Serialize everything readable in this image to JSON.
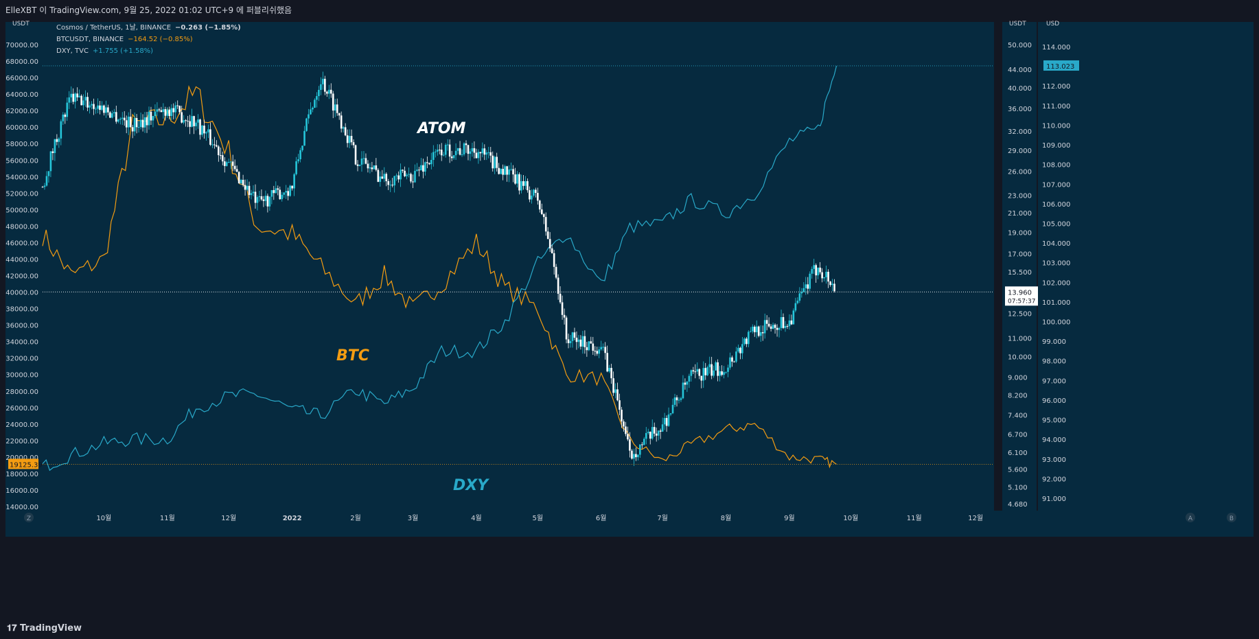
{
  "header": {
    "caption": "ElleXBT 이 TradingView.com, 9월 25, 2022 01:02 UTC+9 에 퍼블리쉬했음"
  },
  "footer": {
    "brand": "TradingView"
  },
  "colors": {
    "background": "#062a3f",
    "atom_up": "#26c6da",
    "atom_down": "#ffffff",
    "btc": "#f39c12",
    "dxy": "#29a9c9",
    "text": "#d1d4dc"
  },
  "legend": [
    {
      "name": "Cosmos / TetherUS, 1날, BINANCE",
      "value": "−0.263 (−1.85%)"
    },
    {
      "name": "BTCUSDT, BINANCE",
      "value": "−164.52 (−0.85%)"
    },
    {
      "name": "DXY, TVC",
      "value": "+1.755 (+1.58%)"
    }
  ],
  "annotations": {
    "atom": "ATOM",
    "btc": "BTC",
    "dxy": "DXY"
  },
  "chart_data": {
    "type": "line",
    "x": [
      "2021-09-01",
      "2021-09-15",
      "2021-10-01",
      "2021-10-15",
      "2021-11-01",
      "2021-11-15",
      "2021-12-01",
      "2021-12-15",
      "2022-01-01",
      "2022-01-15",
      "2022-02-01",
      "2022-02-15",
      "2022-03-01",
      "2022-03-15",
      "2022-04-01",
      "2022-04-15",
      "2022-05-01",
      "2022-05-15",
      "2022-06-01",
      "2022-06-15",
      "2022-07-01",
      "2022-07-15",
      "2022-08-01",
      "2022-08-15",
      "2022-09-01",
      "2022-09-15",
      "2022-09-24"
    ],
    "series": [
      {
        "name": "BTCUSDT, BINANCE",
        "axis": "left",
        "values": [
          47000,
          42000,
          44000,
          60000,
          61000,
          64000,
          57000,
          48000,
          47000,
          43000,
          38500,
          42000,
          38000,
          41000,
          46000,
          40500,
          38000,
          30000,
          29500,
          22000,
          19500,
          21500,
          23300,
          24000,
          20000,
          19700,
          19125
        ]
      },
      {
        "name": "DXY, TVC",
        "axis": "right2",
        "values": [
          92.6,
          93.2,
          93.8,
          94.0,
          94.0,
          95.6,
          96.2,
          96.3,
          95.5,
          95.2,
          96.5,
          95.8,
          96.6,
          98.5,
          98.5,
          100.0,
          103.0,
          104.5,
          101.9,
          104.8,
          105.0,
          106.2,
          105.5,
          106.5,
          109.2,
          109.8,
          113.023
        ]
      },
      {
        "name": "Cosmos / TetherUS, 1날, BINANCE",
        "axis": "right1",
        "values": [
          24.0,
          38.0,
          36.0,
          33.0,
          36.0,
          33.5,
          27.0,
          22.0,
          24.0,
          42.0,
          28.0,
          25.0,
          25.5,
          29.0,
          29.0,
          26.0,
          22.5,
          11.0,
          10.5,
          6.0,
          7.0,
          9.0,
          9.5,
          11.5,
          12.0,
          16.0,
          13.96
        ]
      }
    ],
    "ticks": {
      "x": [
        {
          "label": "10월",
          "date": "2021-10-01"
        },
        {
          "label": "11월",
          "date": "2021-11-01"
        },
        {
          "label": "12월",
          "date": "2021-12-01"
        },
        {
          "label": "2022",
          "date": "2022-01-01"
        },
        {
          "label": "2월",
          "date": "2022-02-01"
        },
        {
          "label": "3월",
          "date": "2022-03-01"
        },
        {
          "label": "4월",
          "date": "2022-04-01"
        },
        {
          "label": "5월",
          "date": "2022-05-01"
        },
        {
          "label": "6월",
          "date": "2022-06-01"
        },
        {
          "label": "7월",
          "date": "2022-07-01"
        },
        {
          "label": "8월",
          "date": "2022-08-01"
        },
        {
          "label": "9월",
          "date": "2022-09-01"
        },
        {
          "label": "10월",
          "date": "2022-10-01"
        },
        {
          "label": "11월",
          "date": "2022-11-01"
        },
        {
          "label": "12월",
          "date": "2022-12-01"
        }
      ],
      "left": [
        14000,
        16000,
        18000,
        20000,
        22000,
        24000,
        26000,
        28000,
        30000,
        32000,
        34000,
        36000,
        38000,
        40000,
        42000,
        44000,
        46000,
        48000,
        50000,
        52000,
        54000,
        56000,
        58000,
        60000,
        62000,
        64000,
        66000,
        68000,
        70000
      ],
      "left_labels": [
        "14000.00",
        "16000.00",
        "18000.00",
        "20000.00",
        "22000.00",
        "24000.00",
        "26000.00",
        "28000.00",
        "30000.00",
        "32000.00",
        "34000.00",
        "36000.00",
        "38000.00",
        "40000.00",
        "42000.00",
        "44000.00",
        "46000.00",
        "48000.00",
        "50000.00",
        "52000.00",
        "54000.00",
        "56000.00",
        "58000.00",
        "60000.00",
        "62000.00",
        "64000.00",
        "66000.00",
        "68000.00",
        "70000.00"
      ],
      "right1": [
        4.68,
        5.1,
        5.6,
        6.1,
        6.7,
        7.4,
        8.2,
        9.0,
        10.0,
        11.0,
        12.5,
        15.5,
        17.0,
        19.0,
        21.0,
        23.0,
        26.0,
        29.0,
        32.0,
        36.0,
        40.0,
        44.0,
        50.0
      ],
      "right1_labels": [
        "4.680",
        "5.100",
        "5.600",
        "6.100",
        "6.700",
        "7.400",
        "8.200",
        "9.000",
        "10.000",
        "11.000",
        "12.500",
        "15.500",
        "17.000",
        "19.000",
        "21.000",
        "23.000",
        "26.000",
        "29.000",
        "32.000",
        "36.000",
        "40.000",
        "44.000",
        "50.000"
      ],
      "right2": [
        91,
        92,
        93,
        94,
        95,
        96,
        97,
        98,
        99,
        100,
        101,
        102,
        103,
        104,
        105,
        106,
        107,
        108,
        109,
        110,
        111,
        112,
        114
      ],
      "right2_labels": [
        "91.000",
        "92.000",
        "93.000",
        "94.000",
        "95.000",
        "96.000",
        "97.000",
        "98.000",
        "99.000",
        "100.000",
        "101.000",
        "102.000",
        "103.000",
        "104.000",
        "105.000",
        "106.000",
        "107.000",
        "108.000",
        "109.000",
        "110.000",
        "111.000",
        "112.000",
        "114.000"
      ]
    },
    "axis_units": {
      "left": "USDT",
      "right1": "USDT",
      "right2": "USD"
    },
    "last_values": {
      "btc": "19125.39",
      "dxy": "113.023",
      "atom": "13.960",
      "atom_countdown": "07:57:37"
    },
    "corner_buttons": {
      "left": "Z",
      "auto": "A",
      "log": "B"
    },
    "scale": "log for ATOM axis"
  }
}
